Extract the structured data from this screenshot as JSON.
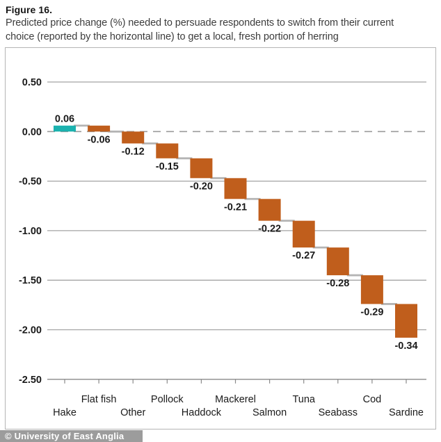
{
  "header": {
    "figure_label": "Figure 16.",
    "description_lines": [
      "Predicted price change (%) needed to persuade respondents to switch from their current",
      "choice (reported by the horizontal line) to get a local, fresh portion of herring"
    ]
  },
  "footer": {
    "watermark": "© University of East Anglia"
  },
  "chart_data": {
    "type": "bar",
    "subtype": "waterfall",
    "categories": [
      "Hake",
      "Flat fish",
      "Other",
      "Pollock",
      "Haddock",
      "Mackerel",
      "Salmon",
      "Tuna",
      "Seabass",
      "Cod",
      "Sardine"
    ],
    "values": [
      0.06,
      -0.06,
      -0.12,
      -0.15,
      -0.2,
      -0.21,
      -0.22,
      -0.27,
      -0.28,
      -0.29,
      -0.34
    ],
    "value_labels": [
      "0.06",
      "-0.06",
      "-0.12",
      "-0.15",
      "-0.20",
      "-0.21",
      "-0.22",
      "-0.27",
      "-0.28",
      "-0.29",
      "-0.34"
    ],
    "cumulative_start": [
      0.0,
      0.06,
      0.0,
      -0.12,
      -0.27,
      -0.47,
      -0.68,
      -0.9,
      -1.17,
      -1.45,
      -1.74
    ],
    "cumulative_end": [
      0.06,
      0.0,
      -0.12,
      -0.27,
      -0.47,
      -0.68,
      -0.9,
      -1.17,
      -1.45,
      -1.74,
      -2.08
    ],
    "y_ticks": [
      "0.50",
      "0.00",
      "-0.50",
      "-1.00",
      "-1.50",
      "-2.00",
      "-2.50"
    ],
    "y_tick_values": [
      0.5,
      0,
      -0.5,
      -1.0,
      -1.5,
      -2.0,
      -2.5
    ],
    "ylim": [
      -2.5,
      0.5
    ],
    "xlabel": "",
    "ylabel": "",
    "grid": "horizontal",
    "zero_line": "dashed",
    "legend": "none",
    "colors": {
      "positive": "#1bb2af",
      "negative": "#c05e1c",
      "gridline": "#a3a3a3",
      "zero_line": "#9b9b9b",
      "connector": "#b4b4b4",
      "axis": "#8a8a8a",
      "text": "#1a1a1a"
    }
  }
}
